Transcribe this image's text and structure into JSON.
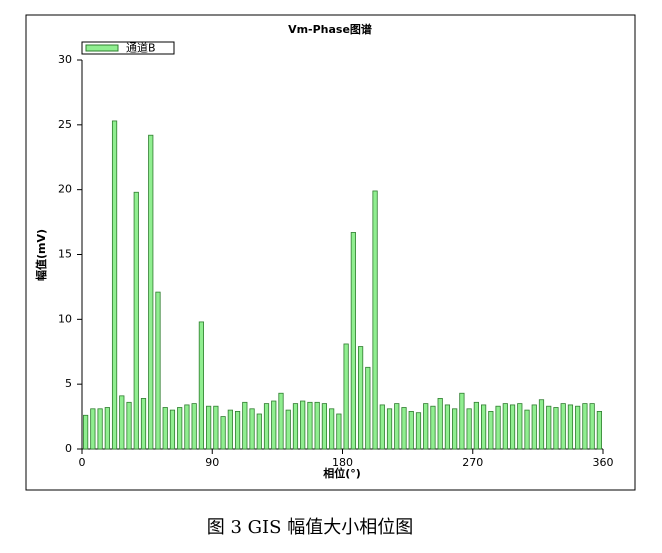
{
  "chart_data": {
    "type": "bar",
    "title": "Vm-Phase图谱",
    "xlabel": "相位(°)",
    "ylabel": "幅值(mV)",
    "series": [
      {
        "name": "通道B",
        "color": "#90ee90",
        "x": [
          2.5,
          7.5,
          12.5,
          17.5,
          22.5,
          27.5,
          32.5,
          37.5,
          42.5,
          47.5,
          52.5,
          57.5,
          62.5,
          67.5,
          72.5,
          77.5,
          82.5,
          87.5,
          92.5,
          97.5,
          102.5,
          107.5,
          112.5,
          117.5,
          122.5,
          127.5,
          132.5,
          137.5,
          142.5,
          147.5,
          152.5,
          157.5,
          162.5,
          167.5,
          172.5,
          177.5,
          182.5,
          187.5,
          192.5,
          197.5,
          202.5,
          207.5,
          212.5,
          217.5,
          222.5,
          227.5,
          232.5,
          237.5,
          242.5,
          247.5,
          252.5,
          257.5,
          262.5,
          267.5,
          272.5,
          277.5,
          282.5,
          287.5,
          292.5,
          297.5,
          302.5,
          307.5,
          312.5,
          317.5,
          322.5,
          327.5,
          332.5,
          337.5,
          342.5,
          347.5,
          352.5,
          357.5
        ],
        "values": [
          2.6,
          3.1,
          3.1,
          3.2,
          25.3,
          4.1,
          3.6,
          19.8,
          3.9,
          24.2,
          12.1,
          3.2,
          3.0,
          3.2,
          3.4,
          3.5,
          9.8,
          3.3,
          3.3,
          2.5,
          3.0,
          2.9,
          3.6,
          3.1,
          2.7,
          3.5,
          3.7,
          4.3,
          3.0,
          3.5,
          3.7,
          3.6,
          3.6,
          3.5,
          3.1,
          2.7,
          8.1,
          16.7,
          7.9,
          6.3,
          19.9,
          3.4,
          3.1,
          3.5,
          3.2,
          2.9,
          2.8,
          3.5,
          3.3,
          3.9,
          3.4,
          3.1,
          4.3,
          3.1,
          3.6,
          3.4,
          2.9,
          3.3,
          3.5,
          3.4,
          3.5,
          3.0,
          3.4,
          3.8,
          3.3,
          3.2,
          3.5,
          3.4,
          3.3,
          3.5,
          3.5,
          2.9
        ]
      }
    ],
    "xlim": [
      0,
      360
    ],
    "xticks": [
      0,
      90,
      180,
      270,
      360
    ],
    "ylim": [
      0,
      30
    ],
    "yticks": [
      0,
      5,
      10,
      15,
      20,
      25,
      30
    ],
    "legend": "top-left",
    "grid": false
  },
  "caption": "图 3 GIS 幅值大小相位图"
}
